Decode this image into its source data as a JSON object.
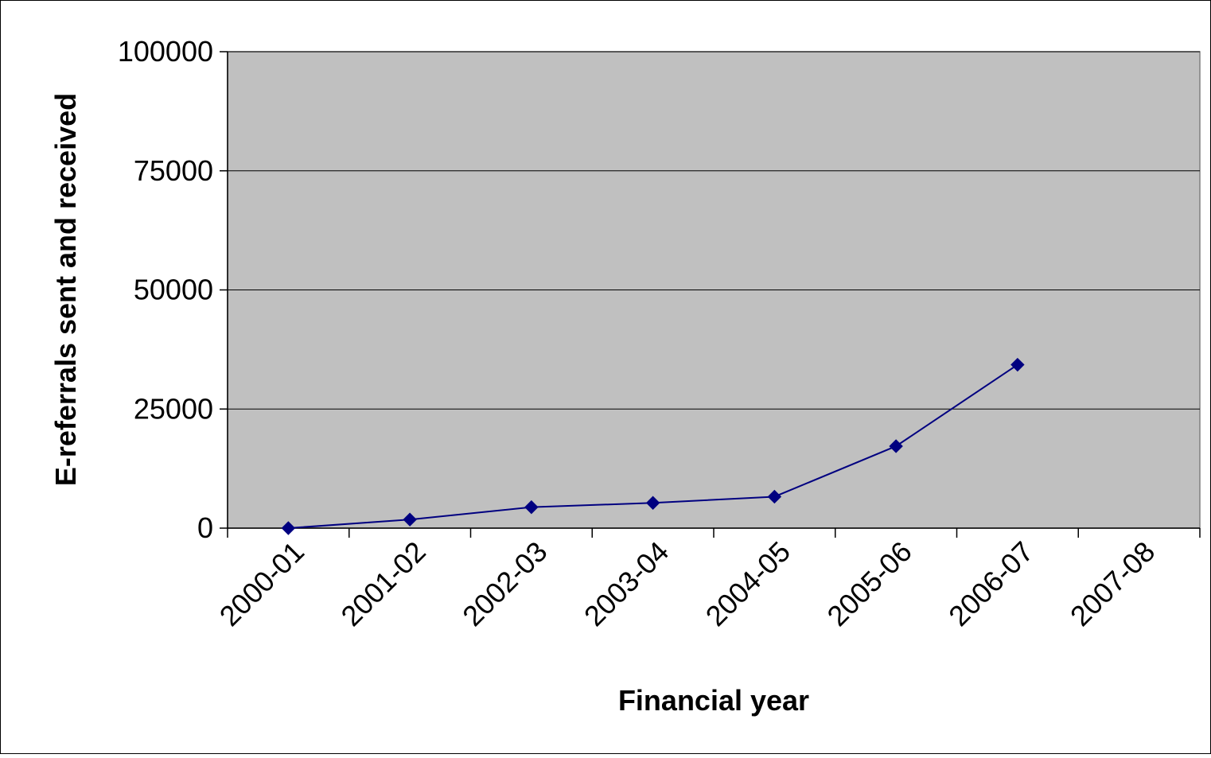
{
  "chart_data": {
    "type": "line",
    "title": "",
    "xlabel": "Financial year",
    "ylabel": "E-referrals sent and received",
    "categories": [
      "2000-01",
      "2001-02",
      "2002-03",
      "2003-04",
      "2004-05",
      "2005-06",
      "2006-07",
      "2007-08"
    ],
    "ylim": [
      0,
      100000
    ],
    "yticks": [
      0,
      25000,
      50000,
      75000,
      100000
    ],
    "ytick_labels": [
      "0",
      "25000",
      "50000",
      "75000",
      "100000"
    ],
    "grid": true,
    "legend": "none",
    "series": [
      {
        "values": [
          0,
          1800,
          4400,
          5300,
          6600,
          17200,
          34300,
          null
        ],
        "color": "#000080",
        "marker": "diamond"
      }
    ]
  },
  "colors": {
    "plot_background": "#c0c0c0",
    "gridline": "#000000",
    "line": "#000080"
  }
}
